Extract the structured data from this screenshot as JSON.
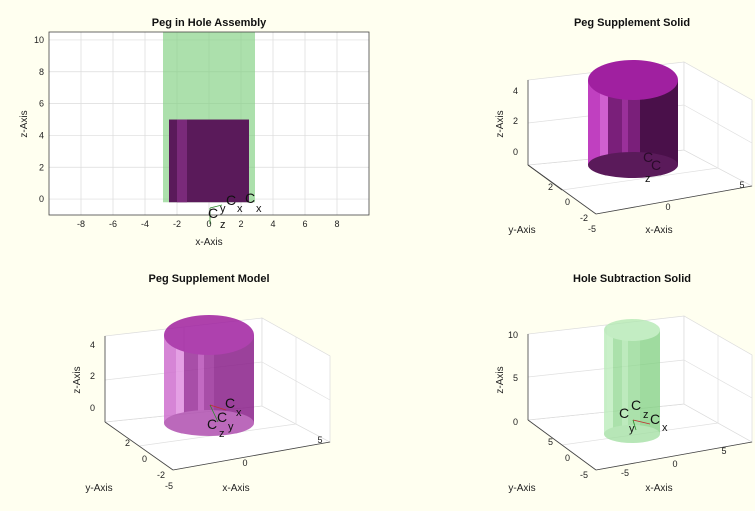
{
  "colors": {
    "background": "#fffff0",
    "axes_background": "#ffffff",
    "peg_purple": "#5a1a5a",
    "peg_magenta": "#a020a0",
    "hole_green": "#7fd07f"
  },
  "chart_data": [
    {
      "type": "scatter",
      "title": "Peg in Hole Assembly",
      "xlabel": "x-Axis",
      "ylabel": "z-Axis",
      "xlim": [
        -10,
        10
      ],
      "ylim": [
        -1,
        10.5
      ],
      "xticks": [
        "-8",
        "-6",
        "-4",
        "-2",
        "0",
        "2",
        "4",
        "6",
        "8"
      ],
      "xtick_values": [
        -8,
        -6,
        -4,
        -2,
        0,
        2,
        4,
        6,
        8
      ],
      "yticks": [
        "0",
        "2",
        "4",
        "6",
        "8",
        "10"
      ],
      "ytick_values": [
        0,
        2,
        4,
        6,
        8,
        10
      ],
      "grid": true,
      "hole": {
        "x": [
          -2.5,
          2.5
        ],
        "z": [
          -0.2,
          10.5
        ]
      },
      "peg": {
        "x": [
          -2.5,
          2.5
        ],
        "z": [
          -0.2,
          5
        ]
      },
      "annotations": [
        "C",
        "z",
        "y",
        "C",
        "x",
        "C",
        "x"
      ]
    },
    {
      "type": "scatter",
      "title": "Peg Supplement Solid",
      "xlabel": "x-Axis",
      "ylabel": "y-Axis",
      "zlabel": "z-Axis",
      "xticks": [
        "-5",
        "0",
        "5"
      ],
      "yticks": [
        "-2",
        "0",
        "2"
      ],
      "zticks": [
        "0",
        "2",
        "4"
      ],
      "grid": true,
      "annotations": [
        "C",
        "z",
        "C"
      ]
    },
    {
      "type": "scatter",
      "title": "Peg Supplement Model",
      "xlabel": "x-Axis",
      "ylabel": "y-Axis",
      "zlabel": "z-Axis",
      "xticks": [
        "-5",
        "0",
        "5"
      ],
      "yticks": [
        "-2",
        "0",
        "2"
      ],
      "zticks": [
        "0",
        "2",
        "4"
      ],
      "grid": true,
      "annotations": [
        "C",
        "x",
        "C",
        "C",
        "y",
        "z"
      ]
    },
    {
      "type": "scatter",
      "title": "Hole Subtraction Solid",
      "xlabel": "x-Axis",
      "ylabel": "y-Axis",
      "zlabel": "z-Axis",
      "xticks": [
        "-5",
        "0",
        "5"
      ],
      "yticks": [
        "-5",
        "0",
        "5"
      ],
      "zticks": [
        "0",
        "5",
        "10"
      ],
      "grid": true,
      "annotations": [
        "C",
        "C",
        "z",
        "C",
        "y",
        "x"
      ]
    }
  ]
}
